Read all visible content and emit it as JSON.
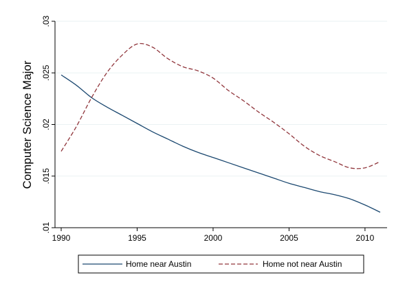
{
  "chart_data": {
    "type": "line",
    "title": "",
    "xlabel": "",
    "ylabel": "Computer Science Major",
    "xlim": [
      1990,
      2011
    ],
    "ylim": [
      0.01,
      0.03
    ],
    "xticks": [
      1990,
      1995,
      2000,
      2005,
      2010
    ],
    "xtick_labels": [
      "1990",
      "1995",
      "2000",
      "2005",
      "2010"
    ],
    "yticks": [
      0.01,
      0.015,
      0.02,
      0.025,
      0.03
    ],
    "ytick_labels": [
      ".01",
      ".015",
      ".02",
      ".025",
      ".03"
    ],
    "grid": "horizontal",
    "legend_position": "bottom",
    "series": [
      {
        "name": "Home near Austin",
        "color": "#1a476f",
        "dash": "solid",
        "x": [
          1990,
          1991,
          1992,
          1993,
          1994,
          1995,
          1996,
          1997,
          1998,
          1999,
          2000,
          2001,
          2002,
          2003,
          2004,
          2005,
          2006,
          2007,
          2008,
          2009,
          2010,
          2011
        ],
        "y": [
          0.0248,
          0.0238,
          0.0226,
          0.0217,
          0.0209,
          0.0201,
          0.0193,
          0.0186,
          0.0179,
          0.0173,
          0.0168,
          0.0163,
          0.0158,
          0.0153,
          0.0148,
          0.0143,
          0.0139,
          0.0135,
          0.0132,
          0.0128,
          0.0122,
          0.0115
        ]
      },
      {
        "name": "Home not near Austin",
        "color": "#90353b",
        "dash": "dashed",
        "x": [
          1990,
          1991,
          1992,
          1993,
          1994,
          1995,
          1996,
          1997,
          1998,
          1999,
          2000,
          2001,
          2002,
          2003,
          2004,
          2005,
          2006,
          2007,
          2008,
          2009,
          2010,
          2011
        ],
        "y": [
          0.0174,
          0.0198,
          0.0226,
          0.025,
          0.0267,
          0.0278,
          0.0275,
          0.0264,
          0.0256,
          0.0252,
          0.0245,
          0.0233,
          0.0223,
          0.0212,
          0.0202,
          0.0191,
          0.0179,
          0.017,
          0.0164,
          0.0158,
          0.0158,
          0.0164
        ]
      }
    ]
  }
}
